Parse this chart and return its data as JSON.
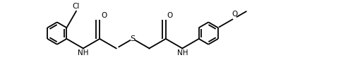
{
  "bg_color": "#ffffff",
  "line_color": "#000000",
  "lw": 1.3,
  "figsize": [
    4.93,
    1.09
  ],
  "dpi": 100,
  "fs": 7.5,
  "r": 0.36,
  "xlim": [
    0,
    9.8
  ],
  "ylim": [
    -0.5,
    2.0
  ]
}
